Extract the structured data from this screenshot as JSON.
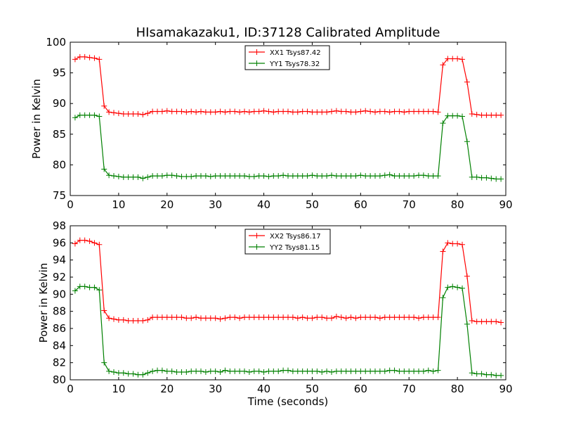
{
  "chart_data": [
    {
      "type": "line",
      "title": "HIsamakazaku1, ID:37128 Calibrated Amplitude",
      "xlabel": "",
      "ylabel": "Power in Kelvin",
      "xlim": [
        0,
        90
      ],
      "ylim": [
        75,
        100
      ],
      "xticks": [
        0,
        10,
        20,
        30,
        40,
        50,
        60,
        70,
        80,
        90
      ],
      "yticks": [
        75,
        80,
        85,
        90,
        95,
        100
      ],
      "grid": false,
      "legend_position": "top-center",
      "series": [
        {
          "name": "XX1 Tsys87.42",
          "color": "#ff0000",
          "x": [
            1,
            2,
            3,
            4,
            5,
            6,
            7,
            8,
            9,
            10,
            11,
            12,
            13,
            14,
            15,
            16,
            17,
            18,
            19,
            20,
            21,
            22,
            23,
            24,
            25,
            26,
            27,
            28,
            29,
            30,
            31,
            32,
            33,
            34,
            35,
            36,
            37,
            38,
            39,
            40,
            41,
            42,
            43,
            44,
            45,
            46,
            47,
            48,
            49,
            50,
            51,
            52,
            53,
            54,
            55,
            56,
            57,
            58,
            59,
            60,
            61,
            62,
            63,
            64,
            65,
            66,
            67,
            68,
            69,
            70,
            71,
            72,
            73,
            74,
            75,
            76,
            77,
            78,
            79,
            80,
            81,
            82,
            83,
            84,
            85,
            86,
            87,
            88,
            89
          ],
          "y": [
            97.2,
            97.6,
            97.6,
            97.5,
            97.4,
            97.2,
            89.6,
            88.6,
            88.5,
            88.4,
            88.3,
            88.3,
            88.3,
            88.3,
            88.2,
            88.4,
            88.7,
            88.7,
            88.7,
            88.8,
            88.7,
            88.7,
            88.7,
            88.6,
            88.7,
            88.6,
            88.7,
            88.6,
            88.6,
            88.6,
            88.7,
            88.6,
            88.7,
            88.7,
            88.6,
            88.7,
            88.6,
            88.7,
            88.7,
            88.8,
            88.7,
            88.6,
            88.7,
            88.7,
            88.7,
            88.6,
            88.6,
            88.7,
            88.7,
            88.6,
            88.6,
            88.6,
            88.6,
            88.7,
            88.8,
            88.7,
            88.7,
            88.6,
            88.6,
            88.7,
            88.8,
            88.7,
            88.6,
            88.7,
            88.7,
            88.6,
            88.7,
            88.7,
            88.6,
            88.7,
            88.7,
            88.7,
            88.7,
            88.7,
            88.7,
            88.6,
            96.3,
            97.3,
            97.3,
            97.3,
            97.2,
            93.5,
            88.3,
            88.2,
            88.1,
            88.1,
            88.1,
            88.1,
            88.1
          ]
        },
        {
          "name": "YY1 Tsys78.32",
          "color": "#008000",
          "x": [
            1,
            2,
            3,
            4,
            5,
            6,
            7,
            8,
            9,
            10,
            11,
            12,
            13,
            14,
            15,
            16,
            17,
            18,
            19,
            20,
            21,
            22,
            23,
            24,
            25,
            26,
            27,
            28,
            29,
            30,
            31,
            32,
            33,
            34,
            35,
            36,
            37,
            38,
            39,
            40,
            41,
            42,
            43,
            44,
            45,
            46,
            47,
            48,
            49,
            50,
            51,
            52,
            53,
            54,
            55,
            56,
            57,
            58,
            59,
            60,
            61,
            62,
            63,
            64,
            65,
            66,
            67,
            68,
            69,
            70,
            71,
            72,
            73,
            74,
            75,
            76,
            77,
            78,
            79,
            80,
            81,
            82,
            83,
            84,
            85,
            86,
            87,
            88,
            89
          ],
          "y": [
            87.7,
            88.1,
            88.1,
            88.1,
            88.1,
            87.9,
            79.3,
            78.3,
            78.2,
            78.1,
            78.0,
            78.0,
            78.0,
            78.0,
            77.8,
            78.0,
            78.2,
            78.2,
            78.2,
            78.3,
            78.3,
            78.2,
            78.1,
            78.1,
            78.1,
            78.2,
            78.2,
            78.2,
            78.1,
            78.2,
            78.2,
            78.2,
            78.2,
            78.2,
            78.2,
            78.2,
            78.1,
            78.1,
            78.2,
            78.2,
            78.1,
            78.2,
            78.2,
            78.3,
            78.2,
            78.2,
            78.2,
            78.2,
            78.2,
            78.3,
            78.2,
            78.2,
            78.2,
            78.3,
            78.2,
            78.2,
            78.2,
            78.2,
            78.2,
            78.3,
            78.2,
            78.2,
            78.2,
            78.2,
            78.3,
            78.4,
            78.2,
            78.2,
            78.2,
            78.2,
            78.2,
            78.3,
            78.3,
            78.2,
            78.2,
            78.2,
            86.8,
            88.0,
            88.0,
            88.0,
            87.9,
            83.8,
            78.0,
            78.0,
            77.9,
            77.9,
            77.8,
            77.7,
            77.7
          ]
        }
      ]
    },
    {
      "type": "line",
      "title": "",
      "xlabel": "Time (seconds)",
      "ylabel": "Power in Kelvin",
      "xlim": [
        0,
        90
      ],
      "ylim": [
        80,
        98
      ],
      "xticks": [
        0,
        10,
        20,
        30,
        40,
        50,
        60,
        70,
        80,
        90
      ],
      "yticks": [
        80,
        82,
        84,
        86,
        88,
        90,
        92,
        94,
        96,
        98
      ],
      "grid": false,
      "legend_position": "top-center",
      "series": [
        {
          "name": "XX2 Tsys86.17",
          "color": "#ff0000",
          "x": [
            1,
            2,
            3,
            4,
            5,
            6,
            7,
            8,
            9,
            10,
            11,
            12,
            13,
            14,
            15,
            16,
            17,
            18,
            19,
            20,
            21,
            22,
            23,
            24,
            25,
            26,
            27,
            28,
            29,
            30,
            31,
            32,
            33,
            34,
            35,
            36,
            37,
            38,
            39,
            40,
            41,
            42,
            43,
            44,
            45,
            46,
            47,
            48,
            49,
            50,
            51,
            52,
            53,
            54,
            55,
            56,
            57,
            58,
            59,
            60,
            61,
            62,
            63,
            64,
            65,
            66,
            67,
            68,
            69,
            70,
            71,
            72,
            73,
            74,
            75,
            76,
            77,
            78,
            79,
            80,
            81,
            82,
            83,
            84,
            85,
            86,
            87,
            88,
            89
          ],
          "y": [
            95.9,
            96.3,
            96.3,
            96.2,
            96.0,
            95.8,
            88.1,
            87.2,
            87.1,
            87.0,
            87.0,
            86.9,
            86.9,
            86.9,
            86.9,
            87.0,
            87.3,
            87.3,
            87.3,
            87.3,
            87.3,
            87.3,
            87.3,
            87.2,
            87.2,
            87.3,
            87.2,
            87.2,
            87.2,
            87.2,
            87.1,
            87.2,
            87.3,
            87.3,
            87.2,
            87.3,
            87.3,
            87.3,
            87.3,
            87.3,
            87.3,
            87.3,
            87.3,
            87.3,
            87.3,
            87.3,
            87.2,
            87.3,
            87.2,
            87.2,
            87.3,
            87.3,
            87.2,
            87.2,
            87.4,
            87.3,
            87.2,
            87.3,
            87.2,
            87.3,
            87.3,
            87.3,
            87.3,
            87.2,
            87.3,
            87.3,
            87.3,
            87.3,
            87.3,
            87.3,
            87.3,
            87.2,
            87.3,
            87.3,
            87.3,
            87.3,
            95.0,
            96.0,
            95.9,
            95.9,
            95.8,
            92.1,
            86.9,
            86.8,
            86.8,
            86.8,
            86.8,
            86.8,
            86.7
          ]
        },
        {
          "name": "YY2 Tsys81.15",
          "color": "#008000",
          "x": [
            1,
            2,
            3,
            4,
            5,
            6,
            7,
            8,
            9,
            10,
            11,
            12,
            13,
            14,
            15,
            16,
            17,
            18,
            19,
            20,
            21,
            22,
            23,
            24,
            25,
            26,
            27,
            28,
            29,
            30,
            31,
            32,
            33,
            34,
            35,
            36,
            37,
            38,
            39,
            40,
            41,
            42,
            43,
            44,
            45,
            46,
            47,
            48,
            49,
            50,
            51,
            52,
            53,
            54,
            55,
            56,
            57,
            58,
            59,
            60,
            61,
            62,
            63,
            64,
            65,
            66,
            67,
            68,
            69,
            70,
            71,
            72,
            73,
            74,
            75,
            76,
            77,
            78,
            79,
            80,
            81,
            82,
            83,
            84,
            85,
            86,
            87,
            88,
            89
          ],
          "y": [
            90.4,
            90.9,
            90.9,
            90.8,
            90.8,
            90.5,
            82.0,
            81.0,
            80.9,
            80.8,
            80.8,
            80.7,
            80.7,
            80.6,
            80.6,
            80.8,
            81.0,
            81.1,
            81.1,
            81.0,
            81.0,
            80.9,
            80.9,
            80.9,
            81.0,
            81.0,
            81.0,
            80.9,
            81.0,
            81.0,
            80.9,
            81.1,
            81.0,
            81.0,
            81.0,
            81.0,
            80.9,
            81.0,
            81.0,
            80.9,
            81.0,
            81.0,
            81.0,
            81.1,
            81.1,
            81.0,
            81.0,
            81.0,
            81.0,
            81.0,
            81.0,
            80.9,
            81.0,
            80.9,
            81.0,
            81.0,
            81.0,
            81.0,
            81.0,
            81.0,
            81.0,
            81.0,
            81.0,
            81.0,
            81.0,
            81.1,
            81.1,
            81.0,
            81.0,
            81.0,
            81.0,
            81.0,
            81.0,
            81.1,
            81.0,
            81.1,
            89.6,
            90.8,
            90.9,
            90.8,
            90.7,
            86.5,
            80.8,
            80.7,
            80.7,
            80.6,
            80.6,
            80.5,
            80.5
          ]
        }
      ]
    }
  ]
}
